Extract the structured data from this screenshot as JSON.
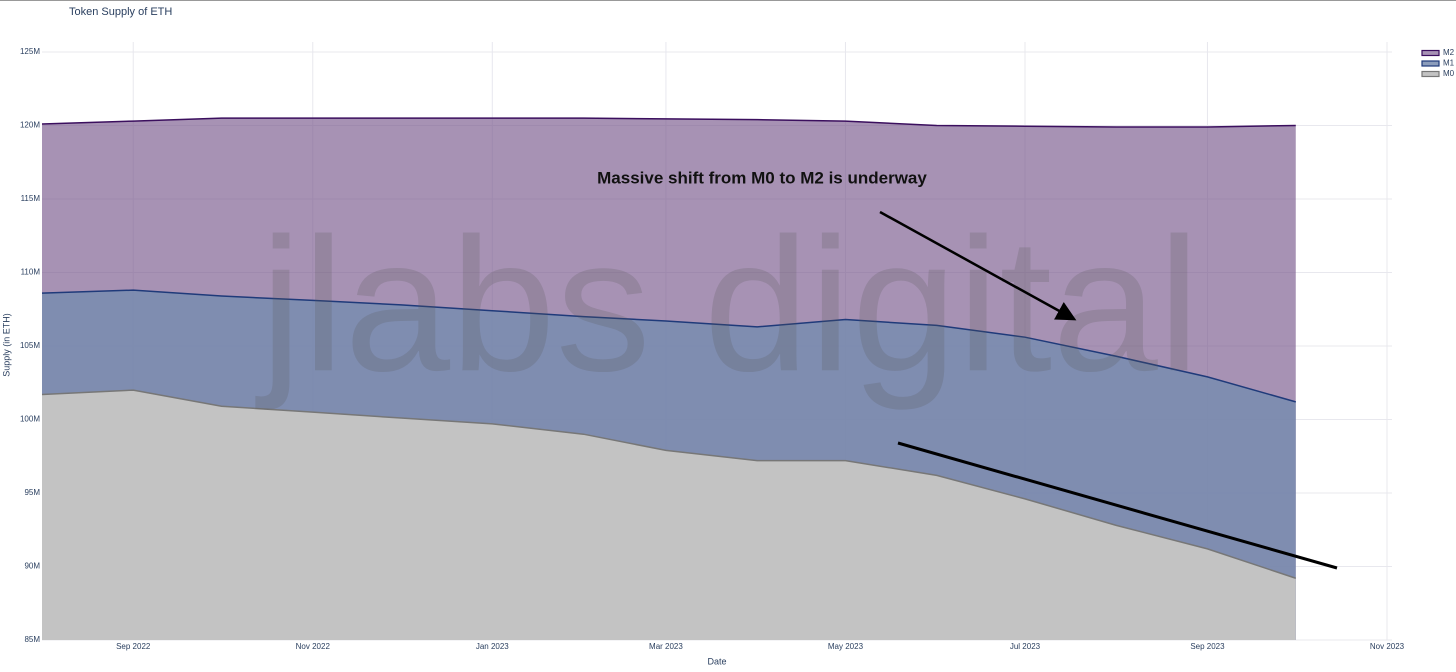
{
  "chart_data": {
    "type": "area",
    "title": "Token Supply of ETH",
    "x_label": "Date",
    "y_label": "Supply (in ETH)",
    "annotation": "Massive shift from M0 to M2 is underway",
    "watermark": "jlabs digital",
    "x": [
      "2022-08",
      "2022-09",
      "2022-10",
      "2022-11",
      "2022-12",
      "2023-01",
      "2023-02",
      "2023-03",
      "2023-04",
      "2023-05",
      "2023-06",
      "2023-07",
      "2023-08",
      "2023-09",
      "2023-10"
    ],
    "xlim": [
      "2022-08",
      "2023-11"
    ],
    "xticks": [
      {
        "value": "2022-09",
        "label": "Sep 2022"
      },
      {
        "value": "2022-11",
        "label": "Nov 2022"
      },
      {
        "value": "2023-01",
        "label": "Jan 2023"
      },
      {
        "value": "2023-03",
        "label": "Mar 2023"
      },
      {
        "value": "2023-05",
        "label": "May 2023"
      },
      {
        "value": "2023-07",
        "label": "Jul 2023"
      },
      {
        "value": "2023-09",
        "label": "Sep 2023"
      },
      {
        "value": "2023-11",
        "label": "Nov 2023"
      }
    ],
    "ylim": [
      85000000,
      125000000
    ],
    "yticks": [
      {
        "value": 85000000,
        "label": "85M"
      },
      {
        "value": 90000000,
        "label": "90M"
      },
      {
        "value": 95000000,
        "label": "95M"
      },
      {
        "value": 100000000,
        "label": "100M"
      },
      {
        "value": 105000000,
        "label": "105M"
      },
      {
        "value": 110000000,
        "label": "110M"
      },
      {
        "value": 115000000,
        "label": "115M"
      },
      {
        "value": 120000000,
        "label": "120M"
      },
      {
        "value": 125000000,
        "label": "125M"
      }
    ],
    "grid": true,
    "legend": "top-right",
    "series": [
      {
        "name": "M2",
        "color": "#3b0f5e",
        "fill": "rgba(120,88,140,0.65)",
        "values": [
          120100000,
          120300000,
          120500000,
          120500000,
          120500000,
          120500000,
          120500000,
          120450000,
          120400000,
          120300000,
          120000000,
          119950000,
          119900000,
          119900000,
          120000000
        ]
      },
      {
        "name": "M1",
        "color": "#1f3a7a",
        "fill": "rgba(120,140,175,0.85)",
        "values": [
          108600000,
          108800000,
          108400000,
          108100000,
          107800000,
          107400000,
          107000000,
          106700000,
          106300000,
          106800000,
          106400000,
          105600000,
          104300000,
          102900000,
          101200000
        ]
      },
      {
        "name": "M0",
        "color": "#777777",
        "fill": "#c3c3c3",
        "values": [
          101700000,
          102000000,
          100900000,
          100500000,
          100100000,
          99700000,
          99000000,
          97900000,
          97200000,
          97200000,
          96200000,
          94600000,
          92800000,
          91200000,
          89200000
        ]
      }
    ]
  }
}
